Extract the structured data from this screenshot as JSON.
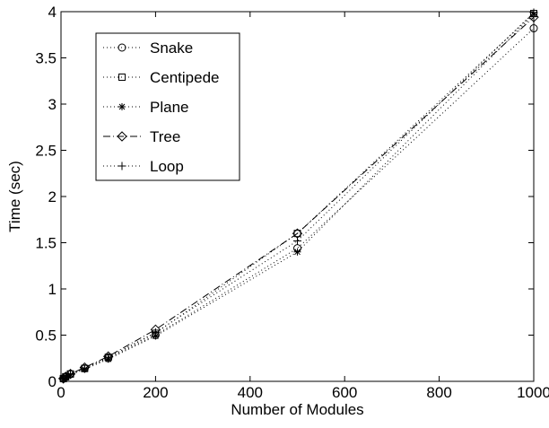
{
  "chart_data": {
    "type": "line",
    "title": "",
    "xlabel": "Number of Modules",
    "ylabel": "Time (sec)",
    "xlim": [
      0,
      1000
    ],
    "ylim": [
      0,
      4
    ],
    "x_ticks": [
      0,
      200,
      400,
      600,
      800,
      1000
    ],
    "y_ticks": [
      0,
      0.5,
      1,
      1.5,
      2,
      2.5,
      3,
      3.5,
      4
    ],
    "grid": false,
    "legend_position": "top-left",
    "x": [
      5,
      10,
      20,
      50,
      100,
      200,
      500,
      1000
    ],
    "series": [
      {
        "name": "Snake",
        "marker": "circle",
        "dash": "dotted",
        "values": [
          0.03,
          0.05,
          0.08,
          0.14,
          0.25,
          0.5,
          1.44,
          3.82
        ]
      },
      {
        "name": "Centipede",
        "marker": "square",
        "dash": "dotted",
        "values": [
          0.03,
          0.05,
          0.08,
          0.14,
          0.26,
          0.52,
          1.6,
          3.98
        ]
      },
      {
        "name": "Plane",
        "marker": "asterisk",
        "dash": "dotted",
        "values": [
          0.02,
          0.04,
          0.07,
          0.13,
          0.24,
          0.49,
          1.4,
          3.97
        ]
      },
      {
        "name": "Tree",
        "marker": "diamond",
        "dash": "dashdot",
        "values": [
          0.03,
          0.05,
          0.08,
          0.15,
          0.27,
          0.56,
          1.6,
          3.94
        ]
      },
      {
        "name": "Loop",
        "marker": "plus",
        "dash": "dotted",
        "values": [
          0.03,
          0.05,
          0.08,
          0.14,
          0.26,
          0.53,
          1.52,
          3.99
        ]
      }
    ]
  }
}
